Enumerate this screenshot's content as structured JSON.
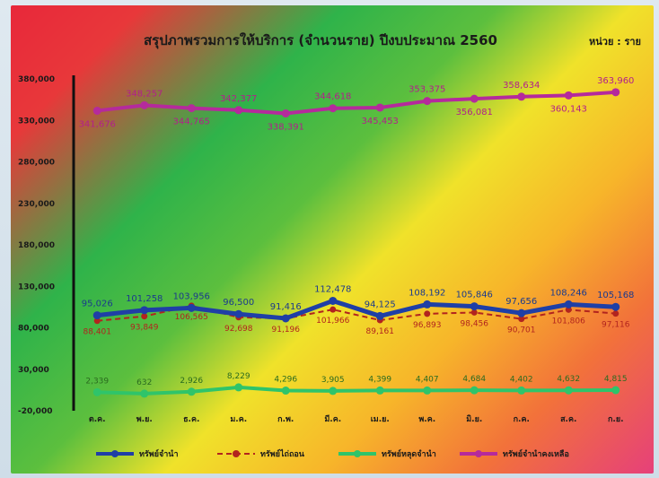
{
  "chart_data": {
    "type": "line",
    "title": "สรุปภาพรวมการให้บริการ (จำนวนราย) ปีงบประมาณ 2560",
    "unit_label": "หน่วย : ราย",
    "categories": [
      "ต.ค.",
      "พ.ย.",
      "ธ.ค.",
      "ม.ค.",
      "ก.พ.",
      "มี.ค.",
      "เม.ย.",
      "พ.ค.",
      "มิ.ย.",
      "ก.ค.",
      "ส.ค.",
      "ก.ย."
    ],
    "y_ticks": [
      "-20,000",
      "30,000",
      "80,000",
      "130,000",
      "180,000",
      "230,000",
      "280,000",
      "330,000",
      "380,000"
    ],
    "ylim": [
      -20000,
      380000
    ],
    "series": [
      {
        "name": "ทรัพย์จำนำ",
        "color": "#1f3fa6",
        "style": "solid",
        "values": [
          95026,
          101258,
          103956,
          96500,
          91416,
          112478,
          94125,
          108192,
          105846,
          97656,
          108246,
          105168
        ],
        "labels": [
          "95,026",
          "101,258",
          "103,956",
          "96,500",
          "91,416",
          "112,478",
          "94,125",
          "108,192",
          "105,846",
          "97,656",
          "108,246",
          "105,168"
        ]
      },
      {
        "name": "ทรัพย์ไถ่ถอน",
        "color": "#b2241e",
        "style": "dashed",
        "values": [
          88401,
          93849,
          106565,
          92698,
          91196,
          101966,
          89161,
          96893,
          98456,
          90701,
          101806,
          97116
        ],
        "labels": [
          "88,401",
          "93,849",
          "106,565",
          "92,698",
          "91,196",
          "101,966",
          "89,161",
          "96,893",
          "98,456",
          "90,701",
          "101,806",
          "97,116"
        ]
      },
      {
        "name": "ทรัพย์หลุดจำนำ",
        "color": "#2fc46a",
        "style": "solid",
        "values": [
          2339,
          632,
          2926,
          8229,
          4296,
          3905,
          4399,
          4407,
          4684,
          4402,
          4632,
          4815
        ],
        "labels": [
          "2,339",
          "632",
          "2,926",
          "8,229",
          "4,296",
          "3,905",
          "4,399",
          "4,407",
          "4,684",
          "4,402",
          "4,632",
          "4,815"
        ]
      },
      {
        "name": "ทรัพย์จำนำคงเหลือ",
        "color": "#b52a9c",
        "style": "solid",
        "values": [
          341676,
          348257,
          344765,
          342377,
          338391,
          344618,
          345453,
          353375,
          356081,
          358634,
          360143,
          363960
        ],
        "labels": [
          "341,676",
          "348,257",
          "344,765",
          "342,377",
          "338,391",
          "344,618",
          "345,453",
          "353,375",
          "356,081",
          "358,634",
          "360,143",
          "363,960"
        ]
      }
    ],
    "legend_position": "bottom",
    "grid": false
  }
}
